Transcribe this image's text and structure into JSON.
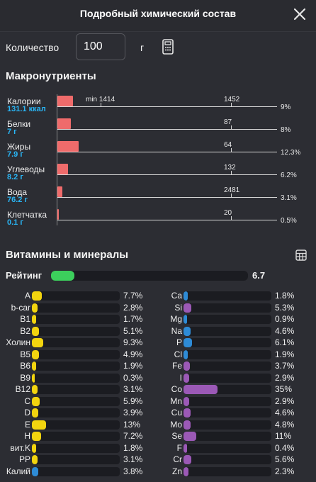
{
  "header": {
    "title": "Подробный химический состав"
  },
  "quantity": {
    "label": "Количество",
    "value": "100",
    "unit": "г"
  },
  "macro": {
    "title": "Макронутриенты",
    "min_label": "min 1414",
    "items": [
      {
        "name": "Калории",
        "amount": "131.1 ккал",
        "norm": "1452",
        "percent": "9%",
        "pct_value": 9
      },
      {
        "name": "Белки",
        "amount": "7 г",
        "norm": "87",
        "percent": "8%",
        "pct_value": 8
      },
      {
        "name": "Жиры",
        "amount": "7.9 г",
        "norm": "64",
        "percent": "12.3%",
        "pct_value": 12.3
      },
      {
        "name": "Углеводы",
        "amount": "8.2 г",
        "norm": "132",
        "percent": "6.2%",
        "pct_value": 6.2
      },
      {
        "name": "Вода",
        "amount": "76.2 г",
        "norm": "2481",
        "percent": "3.1%",
        "pct_value": 3.1
      },
      {
        "name": "Клетчатка",
        "amount": "0.1 г",
        "norm": "20",
        "percent": "0.5%",
        "pct_value": 0.5
      }
    ]
  },
  "vitamins": {
    "title": "Витамины и минералы",
    "rating_label": "Рейтинг",
    "rating_value": "6.7",
    "rating_fill": 0.12,
    "colors": {
      "vitamin": "#f2d40f",
      "mineral": "#9b59b6",
      "blue": "#2e8bd6",
      "rating": "#3ccf5c",
      "macro": "#ef6b6b"
    },
    "left": [
      {
        "name": "A",
        "percent": "7.7%",
        "value": 7.7,
        "color": "#f2d40f"
      },
      {
        "name": "b-car",
        "percent": "2.8%",
        "value": 2.8,
        "color": "#f2d40f"
      },
      {
        "name": "B1",
        "percent": "1.7%",
        "value": 1.7,
        "color": "#f2d40f"
      },
      {
        "name": "B2",
        "percent": "5.1%",
        "value": 5.1,
        "color": "#f2d40f"
      },
      {
        "name": "Холин",
        "percent": "9.3%",
        "value": 9.3,
        "color": "#f2d40f"
      },
      {
        "name": "B5",
        "percent": "4.9%",
        "value": 4.9,
        "color": "#f2d40f"
      },
      {
        "name": "B6",
        "percent": "1.9%",
        "value": 1.9,
        "color": "#f2d40f"
      },
      {
        "name": "B9",
        "percent": "0.3%",
        "value": 0.3,
        "color": "#f2d40f"
      },
      {
        "name": "B12",
        "percent": "3.1%",
        "value": 3.1,
        "color": "#f2d40f"
      },
      {
        "name": "C",
        "percent": "5.9%",
        "value": 5.9,
        "color": "#f2d40f"
      },
      {
        "name": "D",
        "percent": "3.9%",
        "value": 3.9,
        "color": "#f2d40f"
      },
      {
        "name": "E",
        "percent": "13%",
        "value": 13,
        "color": "#f2d40f"
      },
      {
        "name": "H",
        "percent": "7.2%",
        "value": 7.2,
        "color": "#f2d40f"
      },
      {
        "name": "вит.K",
        "percent": "1.8%",
        "value": 1.8,
        "color": "#f2d40f"
      },
      {
        "name": "PP",
        "percent": "3.1%",
        "value": 3.1,
        "color": "#f2d40f"
      },
      {
        "name": "Калий",
        "percent": "3.8%",
        "value": 3.8,
        "color": "#2e8bd6"
      }
    ],
    "right": [
      {
        "name": "Ca",
        "percent": "1.8%",
        "value": 1.8,
        "color": "#2e8bd6"
      },
      {
        "name": "Si",
        "percent": "5.3%",
        "value": 5.3,
        "color": "#9b59b6"
      },
      {
        "name": "Mg",
        "percent": "0.9%",
        "value": 0.9,
        "color": "#2e8bd6"
      },
      {
        "name": "Na",
        "percent": "4.6%",
        "value": 4.6,
        "color": "#2e8bd6"
      },
      {
        "name": "P",
        "percent": "6.1%",
        "value": 6.1,
        "color": "#2e8bd6"
      },
      {
        "name": "Cl",
        "percent": "1.9%",
        "value": 1.9,
        "color": "#2e8bd6"
      },
      {
        "name": "Fe",
        "percent": "3.7%",
        "value": 3.7,
        "color": "#9b59b6"
      },
      {
        "name": "I",
        "percent": "2.9%",
        "value": 2.9,
        "color": "#9b59b6"
      },
      {
        "name": "Co",
        "percent": "35%",
        "value": 35,
        "color": "#9b59b6"
      },
      {
        "name": "Mn",
        "percent": "2.9%",
        "value": 2.9,
        "color": "#9b59b6"
      },
      {
        "name": "Cu",
        "percent": "4.6%",
        "value": 4.6,
        "color": "#9b59b6"
      },
      {
        "name": "Mo",
        "percent": "4.8%",
        "value": 4.8,
        "color": "#9b59b6"
      },
      {
        "name": "Se",
        "percent": "11%",
        "value": 11,
        "color": "#9b59b6"
      },
      {
        "name": "F",
        "percent": "0.4%",
        "value": 0.4,
        "color": "#9b59b6"
      },
      {
        "name": "Cr",
        "percent": "5.6%",
        "value": 5.6,
        "color": "#9b59b6"
      },
      {
        "name": "Zn",
        "percent": "2.3%",
        "value": 2.3,
        "color": "#9b59b6"
      }
    ]
  },
  "icons": {
    "close": "close-icon",
    "calculator": "calculator-icon",
    "table": "table-icon"
  }
}
